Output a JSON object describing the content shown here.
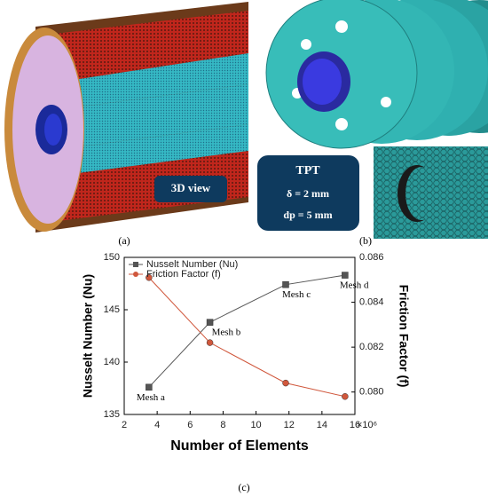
{
  "panels": {
    "a": {
      "label": "(a)",
      "caption": "3D view"
    },
    "b": {
      "label": "(b)",
      "box_title": "TPT",
      "box_lines": [
        "δ = 2 mm",
        "dp = 5 mm"
      ]
    },
    "c": {
      "label": "(c)"
    }
  },
  "chart_data": {
    "type": "line",
    "x_label": "Number of Elements",
    "x_multiplier": "×10⁶",
    "y_label": "Nusselt Number (Nu)",
    "y2_label": "Friction Factor (f)",
    "x": [
      3.5,
      7.2,
      11.8,
      15.4
    ],
    "annotations": [
      "Mesh a",
      "Mesh b",
      "Mesh c",
      "Mesh d"
    ],
    "series": [
      {
        "name": "Nusselt Number (Nu)",
        "color": "#555555",
        "marker": "square",
        "values": [
          137.6,
          143.8,
          147.4,
          148.3
        ]
      },
      {
        "name": "Friction Factor (f)",
        "color": "#d0573c",
        "marker": "circle",
        "axis": "y2",
        "values": [
          0.0851,
          0.0822,
          0.0804,
          0.0798
        ]
      }
    ],
    "xlim": [
      2,
      16
    ],
    "xticks": [
      2,
      4,
      6,
      8,
      10,
      12,
      14,
      16
    ],
    "ylim": [
      135,
      150
    ],
    "yticks": [
      135,
      140,
      145,
      150
    ],
    "y2lim": [
      0.079,
      0.086
    ],
    "y2ticks": [
      {
        "value": 0.08,
        "label": "0.080"
      },
      0.082,
      0.084,
      0.086
    ],
    "legend": "upper-left",
    "grid": false
  }
}
